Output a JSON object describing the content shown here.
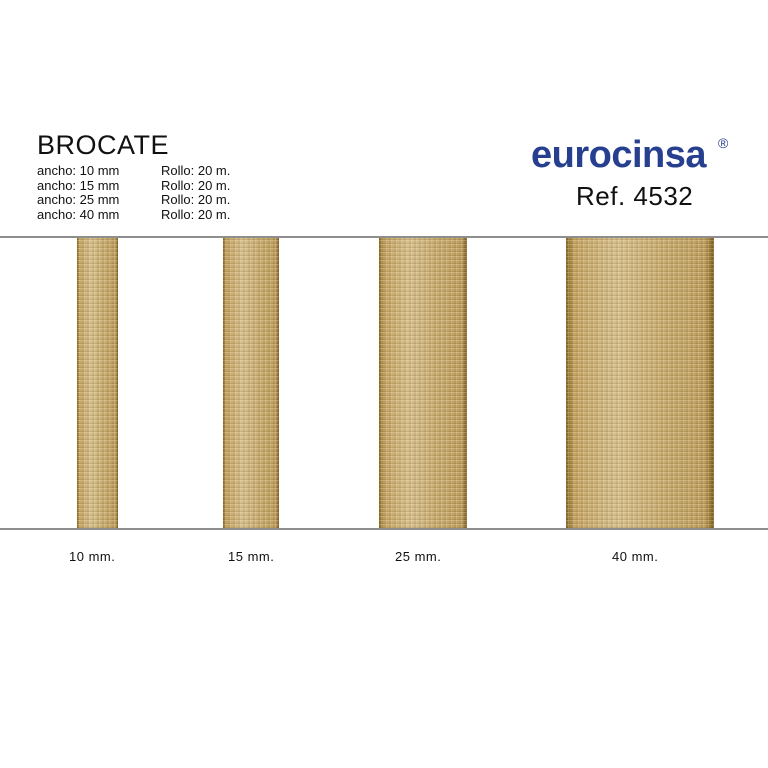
{
  "header": {
    "title": "BROCATE",
    "specs": [
      {
        "width": "ancho: 10 mm",
        "roll": "Rollo: 20 m."
      },
      {
        "width": "ancho: 15 mm",
        "roll": "Rollo: 20 m."
      },
      {
        "width": "ancho: 25 mm",
        "roll": "Rollo: 20 m."
      },
      {
        "width": "ancho: 40 mm",
        "roll": "Rollo: 20 m."
      }
    ]
  },
  "brand": {
    "logo": "eurocinsa",
    "registered": "®",
    "reference": "Ref. 4532",
    "color": "#26408f"
  },
  "samples": [
    {
      "label": "10 mm."
    },
    {
      "label": "15 mm."
    },
    {
      "label": "25 mm."
    },
    {
      "label": "40 mm."
    }
  ],
  "colors": {
    "ribbon": "#c9ac70",
    "divider": "#8e8e8e"
  }
}
